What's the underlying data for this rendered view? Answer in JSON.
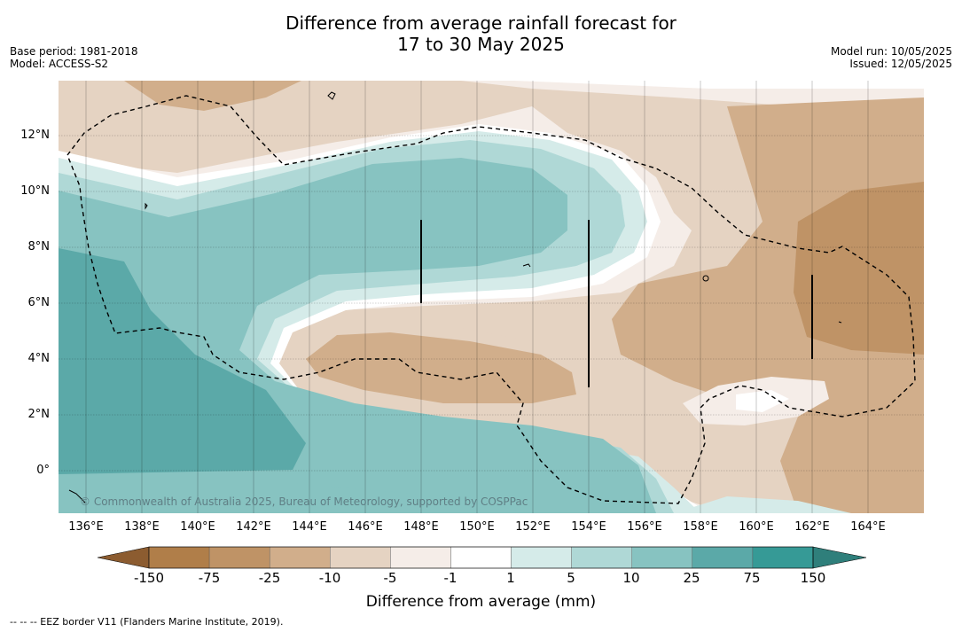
{
  "header": {
    "title_line1": "Difference from average rainfall forecast for",
    "title_line2": "17 to 30 May 2025",
    "base_period": "Base period: 1981-2018",
    "model": "Model: ACCESS-S2",
    "model_run": "Model run: 10/05/2025",
    "issued": "Issued: 12/05/2025"
  },
  "map": {
    "lat_labels": [
      "12°N",
      "10°N",
      "8°N",
      "6°N",
      "4°N",
      "2°N",
      "0°"
    ],
    "lat_values": [
      12,
      10,
      8,
      6,
      4,
      2,
      0
    ],
    "lon_labels": [
      "136°E",
      "138°E",
      "140°E",
      "142°E",
      "144°E",
      "146°E",
      "148°E",
      "150°E",
      "152°E",
      "154°E",
      "156°E",
      "158°E",
      "160°E",
      "162°E",
      "164°E"
    ],
    "lon_values": [
      136,
      138,
      140,
      142,
      144,
      146,
      148,
      150,
      152,
      154,
      156,
      158,
      160,
      162,
      164
    ],
    "copyright": "© Commonwealth of Australia 2025, Bureau of Meteorology, supported by COSPPac"
  },
  "legend": {
    "tick_labels": [
      "-150",
      "-75",
      "-25",
      "-10",
      "-5",
      "-1",
      "1",
      "5",
      "10",
      "25",
      "75",
      "150"
    ],
    "colors": [
      "#b07e49",
      "#bf9366",
      "#d1ae8b",
      "#e5d3c2",
      "#f5ede8",
      "#ffffff",
      "#d5ebe9",
      "#afd8d6",
      "#87c3c1",
      "#5ba9a8",
      "#369a96"
    ],
    "under_color": "#8c5c30",
    "over_color": "#2f7f7b",
    "title": "Difference from average (mm)"
  },
  "footnote": "--  --  -- EEZ border V11 (Flanders Marine Institute, 2019)."
}
